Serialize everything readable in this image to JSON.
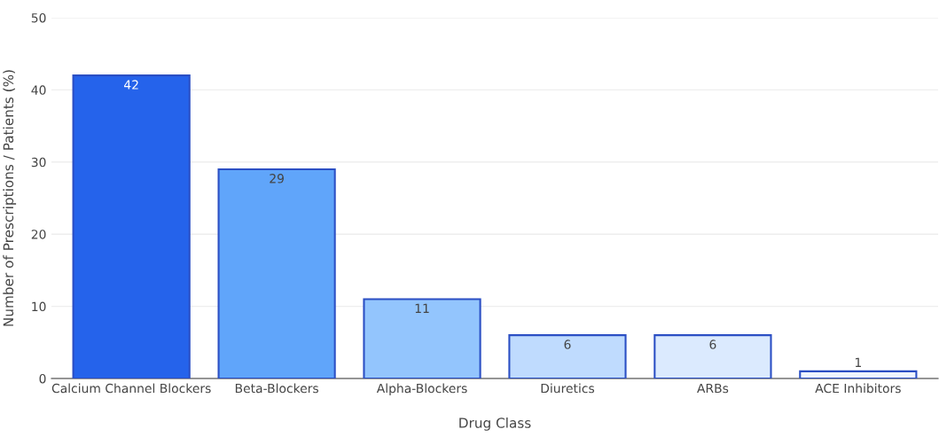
{
  "chart_data": {
    "type": "bar",
    "xlabel": "Drug Class",
    "ylabel": "Number of Prescriptions / Patients (%)",
    "categories": [
      "Calcium Channel Blockers",
      "Beta-Blockers",
      "Alpha-Blockers",
      "Diuretics",
      "ARBs",
      "ACE Inhibitors"
    ],
    "values": [
      42,
      29,
      11,
      6,
      6,
      1
    ],
    "colors": [
      "#2563eb",
      "#60a5fa",
      "#93c5fd",
      "#bfdbfe",
      "#dbeafe",
      "#eff6ff"
    ],
    "ylim": [
      0,
      50
    ],
    "yticks": [
      0,
      10,
      20,
      30,
      40,
      50
    ],
    "grid": "y",
    "data_labels": true,
    "legend": false
  }
}
